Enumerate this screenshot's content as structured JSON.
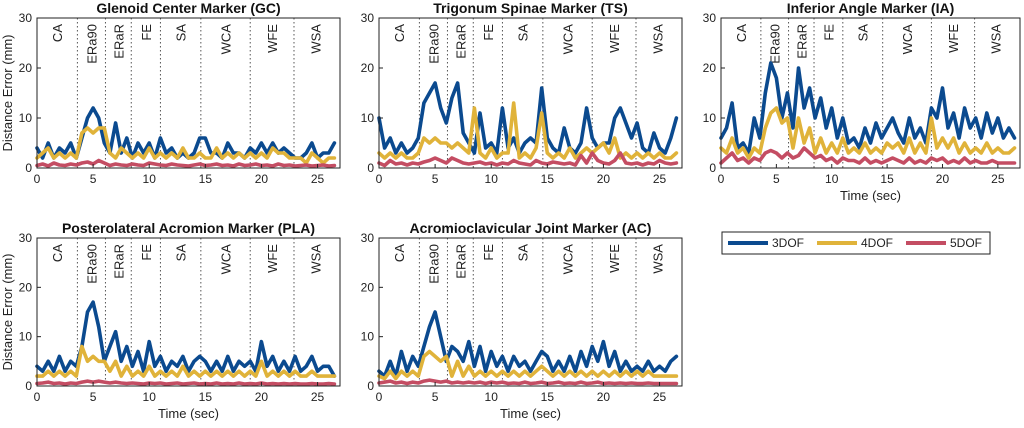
{
  "chart_data": {
    "type": "line",
    "colors": {
      "3DOF": "#0b4a8f",
      "4DOF": "#e0b33a",
      "5DOF": "#c44d63"
    },
    "legend": [
      "3DOF",
      "4DOF",
      "5DOF"
    ],
    "phase_labels": [
      "CA",
      "ERa90",
      "ERaR",
      "FE",
      "SA",
      "WCA",
      "WFE",
      "WSA"
    ],
    "phase_boundaries": [
      3.6,
      6.1,
      8.4,
      11.0,
      14.6,
      19.0,
      22.9
    ],
    "xlim": [
      0,
      27
    ],
    "ylim": [
      0,
      30
    ],
    "xticks": [
      0,
      5,
      10,
      15,
      20,
      25
    ],
    "yticks": [
      0,
      10,
      20,
      30
    ],
    "xlabel": "Time (sec)",
    "ylabel": "Distance Error (mm)",
    "x": [
      0,
      0.5,
      1,
      1.5,
      2,
      2.5,
      3,
      3.5,
      4,
      4.5,
      5,
      5.5,
      6,
      6.5,
      7,
      7.5,
      8,
      8.5,
      9,
      9.5,
      10,
      10.5,
      11,
      11.5,
      12,
      12.5,
      13,
      13.5,
      14,
      14.5,
      15,
      15.5,
      16,
      16.5,
      17,
      17.5,
      18,
      18.5,
      19,
      19.5,
      20,
      20.5,
      21,
      21.5,
      22,
      22.5,
      23,
      23.5,
      24,
      24.5,
      25,
      25.5,
      26,
      26.5
    ],
    "panels": [
      {
        "title": "Glenoid Center Marker (GC)",
        "series": [
          {
            "name": "3DOF",
            "values": [
              4,
              2,
              5,
              2,
              4,
              3,
              5,
              2,
              6,
              10,
              12,
              10,
              5,
              3,
              9,
              3,
              6,
              2,
              5,
              3,
              5,
              2,
              6,
              3,
              4,
              2,
              3,
              2,
              3,
              6,
              6,
              3,
              3,
              2,
              5,
              3,
              3,
              2,
              4,
              3,
              5,
              3,
              5,
              3,
              4,
              3,
              2,
              2,
              3,
              5,
              2,
              3,
              3,
              5
            ]
          },
          {
            "name": "4DOF",
            "values": [
              2,
              3,
              4,
              2,
              3,
              2,
              3,
              2,
              7,
              8,
              7,
              8,
              8,
              3,
              2,
              4,
              3,
              2,
              3,
              2,
              4,
              2,
              3,
              2,
              3,
              2,
              4,
              2,
              2,
              3,
              2,
              2,
              4,
              2,
              3,
              2,
              3,
              2,
              3,
              2,
              3,
              2,
              4,
              3,
              3,
              2,
              2,
              2,
              1,
              3,
              2,
              1,
              2,
              2
            ]
          },
          {
            "name": "5DOF",
            "values": [
              0.5,
              0.8,
              0.4,
              1,
              0.6,
              0.5,
              0.8,
              0.6,
              1,
              1.2,
              0.8,
              1.5,
              1,
              0.5,
              0.8,
              0.6,
              0.5,
              0.8,
              0.6,
              0.5,
              1,
              0.8,
              0.6,
              0.5,
              0.8,
              0.6,
              0.5,
              0.4,
              0.6,
              0.8,
              0.5,
              0.6,
              0.8,
              0.5,
              0.6,
              0.4,
              0.8,
              0.5,
              0.6,
              0.8,
              0.5,
              0.6,
              0.4,
              0.8,
              0.5,
              0.6,
              0.4,
              0.5,
              0.6,
              0.4,
              0.5,
              0.6,
              0.4,
              0.5
            ]
          }
        ]
      },
      {
        "title": "Trigonum Spinae Marker (TS)",
        "series": [
          {
            "name": "3DOF",
            "values": [
              10,
              4,
              6,
              3,
              5,
              3,
              4,
              6,
              13,
              15,
              17,
              12,
              9,
              14,
              17,
              7,
              5,
              3,
              11,
              4,
              5,
              3,
              12,
              4,
              6,
              3,
              5,
              6,
              5,
              16,
              6,
              4,
              3,
              8,
              4,
              3,
              5,
              12,
              6,
              4,
              5,
              5,
              10,
              12,
              9,
              6,
              9,
              4,
              3,
              7,
              4,
              3,
              6,
              10
            ]
          },
          {
            "name": "4DOF",
            "values": [
              3,
              2,
              3,
              2,
              3,
              2,
              2,
              3,
              6,
              5,
              6,
              5,
              5,
              4,
              5,
              4,
              3,
              12,
              3,
              2,
              4,
              2,
              3,
              3,
              13,
              2,
              3,
              2,
              4,
              11,
              3,
              2,
              3,
              2,
              4,
              2,
              3,
              4,
              3,
              4,
              5,
              3,
              6,
              2,
              3,
              2,
              3,
              2,
              3,
              2,
              3,
              2,
              2,
              3
            ]
          },
          {
            "name": "5DOF",
            "values": [
              1,
              0.5,
              1.5,
              0.8,
              1,
              0.6,
              1,
              0.8,
              1.2,
              1.5,
              2,
              1.5,
              1,
              2,
              1.5,
              1,
              0.8,
              1,
              1.2,
              0.8,
              1,
              0.6,
              1,
              0.8,
              1.5,
              1,
              0.8,
              0.6,
              1.5,
              1,
              0.8,
              1.2,
              1,
              0.8,
              1,
              0.6,
              2.5,
              1,
              3,
              1.5,
              1,
              0.8,
              1.5,
              3,
              1,
              0.8,
              1,
              0.6,
              1,
              0.8,
              1.5,
              1,
              0.8,
              1
            ]
          }
        ]
      },
      {
        "title": "Inferior Angle Marker (IA)",
        "series": [
          {
            "name": "3DOF",
            "values": [
              6,
              8,
              13,
              4,
              5,
              3,
              10,
              6,
              15,
              21,
              18,
              10,
              15,
              8,
              20,
              12,
              16,
              10,
              14,
              8,
              12,
              6,
              10,
              5,
              6,
              4,
              8,
              5,
              9,
              6,
              8,
              10,
              7,
              5,
              10,
              6,
              8,
              5,
              12,
              10,
              16,
              8,
              11,
              6,
              12,
              8,
              10,
              6,
              11,
              7,
              10,
              6,
              8,
              6
            ]
          },
          {
            "name": "4DOF",
            "values": [
              4,
              3,
              6,
              3,
              4,
              2,
              4,
              3,
              8,
              11,
              12,
              9,
              10,
              4,
              10,
              5,
              8,
              3,
              6,
              3,
              5,
              3,
              6,
              3,
              4,
              3,
              5,
              3,
              4,
              3,
              5,
              4,
              5,
              3,
              6,
              3,
              5,
              3,
              10,
              4,
              6,
              4,
              6,
              3,
              5,
              3,
              4,
              3,
              5,
              3,
              4,
              3,
              3,
              4
            ]
          },
          {
            "name": "5DOF",
            "values": [
              1,
              2,
              3,
              1.5,
              2,
              1,
              2,
              1.5,
              3,
              3.5,
              3,
              2,
              3,
              2,
              2.5,
              4,
              3,
              2,
              2.5,
              1.5,
              2,
              1,
              2,
              1.5,
              1.5,
              1,
              2,
              1,
              1.5,
              1,
              1.5,
              2,
              1.5,
              1,
              2,
              1,
              1.5,
              1,
              2,
              1.5,
              2,
              1,
              1.5,
              1,
              2,
              1,
              1.5,
              1,
              1,
              1.5,
              1,
              1,
              1,
              1
            ]
          }
        ]
      },
      {
        "title": "Posterolateral Acromion Marker (PLA)",
        "series": [
          {
            "name": "3DOF",
            "values": [
              4,
              3,
              5,
              3,
              6,
              3,
              5,
              4,
              8,
              15,
              17,
              12,
              5,
              8,
              11,
              5,
              8,
              4,
              7,
              3,
              9,
              4,
              6,
              3,
              5,
              4,
              6,
              3,
              5,
              6,
              5,
              3,
              5,
              3,
              6,
              3,
              5,
              4,
              5,
              3,
              9,
              4,
              6,
              3,
              5,
              3,
              6,
              3,
              4,
              6,
              3,
              4,
              4,
              2
            ]
          },
          {
            "name": "4DOF",
            "values": [
              2,
              2,
              3,
              2,
              3,
              2,
              3,
              2,
              8,
              5,
              6,
              5,
              5,
              3,
              5,
              2,
              4,
              2,
              3,
              2,
              4,
              2,
              3,
              2,
              3,
              2,
              4,
              2,
              3,
              2,
              3,
              2,
              3,
              2,
              3,
              2,
              3,
              2,
              3,
              2,
              5,
              2,
              3,
              2,
              3,
              2,
              3,
              2,
              2,
              3,
              2,
              2,
              2,
              2
            ]
          },
          {
            "name": "5DOF",
            "values": [
              0.5,
              0.6,
              0.8,
              0.5,
              0.6,
              0.4,
              0.6,
              0.5,
              0.8,
              1,
              0.8,
              1,
              0.8,
              0.6,
              0.8,
              0.6,
              0.5,
              0.6,
              0.5,
              0.4,
              0.6,
              0.5,
              0.6,
              0.4,
              0.5,
              0.6,
              0.4,
              0.5,
              0.6,
              0.4,
              0.5,
              0.4,
              0.6,
              0.4,
              0.5,
              0.4,
              0.6,
              0.4,
              0.5,
              0.4,
              0.6,
              0.4,
              0.5,
              0.4,
              0.5,
              0.4,
              0.5,
              0.4,
              0.4,
              0.5,
              0.4,
              0.4,
              0.5,
              0.4
            ]
          }
        ]
      },
      {
        "title": "Acromioclavicular Joint Marker (AC)",
        "series": [
          {
            "name": "3DOF",
            "values": [
              3,
              2,
              5,
              2,
              7,
              3,
              6,
              4,
              8,
              12,
              15,
              10,
              5,
              8,
              7,
              5,
              9,
              4,
              8,
              3,
              7,
              4,
              6,
              3,
              6,
              4,
              5,
              3,
              5,
              7,
              6,
              3,
              5,
              3,
              6,
              3,
              7,
              4,
              8,
              5,
              9,
              4,
              7,
              3,
              5,
              3,
              4,
              3,
              5,
              3,
              4,
              3,
              5,
              6
            ]
          },
          {
            "name": "4DOF",
            "values": [
              2,
              1.5,
              3,
              1.5,
              3,
              2,
              3,
              2,
              6,
              7,
              6,
              5,
              6,
              2,
              5,
              2,
              4,
              2,
              3,
              2,
              3,
              2,
              3,
              2,
              3,
              2,
              3,
              2,
              3,
              4,
              3,
              2,
              3,
              2,
              3,
              2,
              3,
              2,
              3,
              2,
              3,
              2,
              3,
              2,
              3,
              2,
              3,
              2,
              3,
              2,
              2,
              2,
              2,
              2
            ]
          },
          {
            "name": "5DOF",
            "values": [
              0.6,
              0.8,
              1,
              0.6,
              0.8,
              0.5,
              0.8,
              0.6,
              1,
              1.2,
              1,
              0.8,
              1,
              0.6,
              0.8,
              0.6,
              0.8,
              0.6,
              0.8,
              0.5,
              0.8,
              0.6,
              0.8,
              0.5,
              0.6,
              0.5,
              0.8,
              0.5,
              0.6,
              0.8,
              0.5,
              0.6,
              0.8,
              0.5,
              0.6,
              0.5,
              0.8,
              0.5,
              0.6,
              0.8,
              0.5,
              0.6,
              0.5,
              0.6,
              0.5,
              0.6,
              0.5,
              0.5,
              0.6,
              0.5,
              0.5,
              0.5,
              0.5,
              0.5
            ]
          }
        ]
      }
    ]
  }
}
